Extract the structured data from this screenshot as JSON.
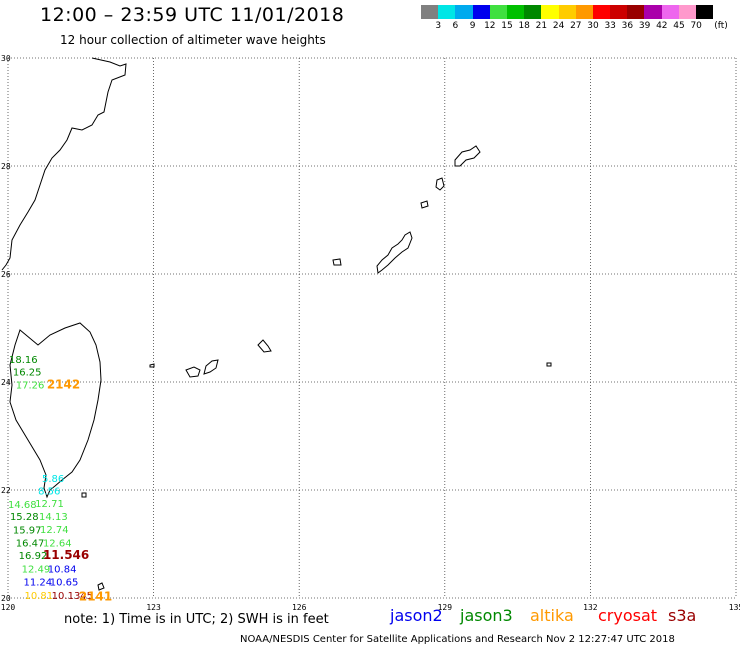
{
  "header": {
    "title": "12:00 – 23:59 UTC 11/01/2018",
    "subtitle": "12 hour collection of altimeter wave heights"
  },
  "legend": {
    "colors": [
      "#808080",
      "#00e6e6",
      "#00aaee",
      "#0000ee",
      "#40e040",
      "#00c000",
      "#008800",
      "#ffff00",
      "#ffcc00",
      "#ff9900",
      "#ff0000",
      "#cc0000",
      "#990000",
      "#aa00aa",
      "#ee66ee",
      "#ff99cc",
      "#000000"
    ],
    "labels": [
      "3",
      "6",
      "9",
      "12",
      "15",
      "18",
      "21",
      "24",
      "27",
      "30",
      "33",
      "36",
      "39",
      "42",
      "45",
      "70"
    ],
    "unit": "(ft)"
  },
  "axes": {
    "lon_ticks": [
      "120",
      "123",
      "126",
      "129",
      "132",
      "135"
    ],
    "lat_ticks": [
      "30",
      "28",
      "26",
      "24",
      "22",
      "20"
    ]
  },
  "observations": [
    {
      "text": "18.16",
      "lon": 120.02,
      "lat": 24.43,
      "color": "#008800"
    },
    {
      "text": "16.25",
      "lon": 120.1,
      "lat": 24.19,
      "color": "#008800"
    },
    {
      "text": "17.26",
      "lon": 120.16,
      "lat": 23.95,
      "color": "#40e040"
    },
    {
      "text": "2142",
      "lon": 120.8,
      "lat": 23.95,
      "color": "#ff9900",
      "big": true
    },
    {
      "text": "5.86",
      "lon": 120.7,
      "lat": 22.22,
      "color": "#00e6e6"
    },
    {
      "text": "8.56",
      "lon": 120.62,
      "lat": 21.99,
      "color": "#00e6e6"
    },
    {
      "text": "14.68",
      "lon": 120.0,
      "lat": 21.74,
      "color": "#40e040"
    },
    {
      "text": "12.71",
      "lon": 120.56,
      "lat": 21.76,
      "color": "#40e040"
    },
    {
      "text": "15.28",
      "lon": 120.04,
      "lat": 21.52,
      "color": "#008800"
    },
    {
      "text": "14.13",
      "lon": 120.64,
      "lat": 21.52,
      "color": "#40e040"
    },
    {
      "text": "15.97",
      "lon": 120.1,
      "lat": 21.27,
      "color": "#008800"
    },
    {
      "text": "12.74",
      "lon": 120.66,
      "lat": 21.28,
      "color": "#40e040"
    },
    {
      "text": "16.47",
      "lon": 120.16,
      "lat": 21.03,
      "color": "#008800"
    },
    {
      "text": "12.64",
      "lon": 120.72,
      "lat": 21.03,
      "color": "#40e040"
    },
    {
      "text": "16.92",
      "lon": 120.22,
      "lat": 20.8,
      "color": "#008800"
    },
    {
      "text": "11.546",
      "lon": 120.72,
      "lat": 20.8,
      "color": "#990000",
      "big": true
    },
    {
      "text": "12.49",
      "lon": 120.28,
      "lat": 20.55,
      "color": "#40e040"
    },
    {
      "text": "10.84",
      "lon": 120.82,
      "lat": 20.55,
      "color": "#0000ee"
    },
    {
      "text": "11.24",
      "lon": 120.32,
      "lat": 20.31,
      "color": "#0000ee"
    },
    {
      "text": "10.65",
      "lon": 120.86,
      "lat": 20.31,
      "color": "#0000ee"
    },
    {
      "text": "10.81",
      "lon": 120.34,
      "lat": 20.06,
      "color": "#ffcc00"
    },
    {
      "text": "10.1345",
      "lon": 120.9,
      "lat": 20.06,
      "color": "#990000"
    },
    {
      "text": "2141",
      "lon": 121.46,
      "lat": 20.03,
      "color": "#ff9900",
      "big": true
    }
  ],
  "footer": {
    "note": "note:  1) Time is in UTC;  2) SWH is in feet",
    "missions": [
      {
        "name": "jason2",
        "color": "#0000ee"
      },
      {
        "name": "jason3",
        "color": "#008800"
      },
      {
        "name": "altika",
        "color": "#ff9900"
      },
      {
        "name": "cryosat",
        "color": "#ff0000"
      },
      {
        "name": "s3a",
        "color": "#990000"
      }
    ],
    "credit": "NOAA/NESDIS Center for Satellite Applications and Research    Nov  2 12:27:47 UTC 2018"
  }
}
